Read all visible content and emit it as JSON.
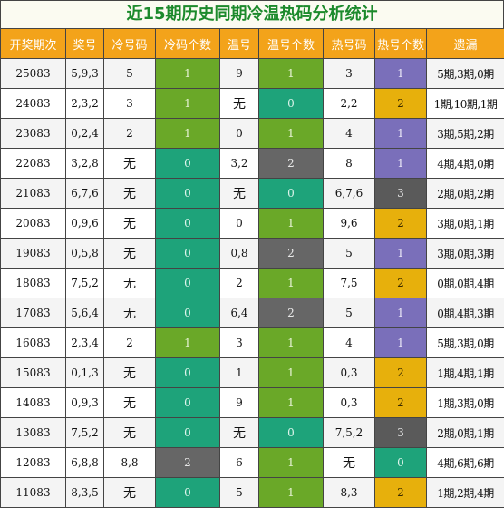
{
  "title": "近15期历史同期冷温热码分析统计",
  "headers": [
    "开奖期次",
    "奖号",
    "冷号码",
    "冷码个数",
    "温号",
    "温号个数",
    "热号码",
    "热号个数",
    "遗漏"
  ],
  "colors": {
    "header": "#f3a31a",
    "title_text": "#1c8a2c",
    "green": "#6aa828",
    "teal": "#1ea37a",
    "gray": "#666666",
    "purple": "#7a6fba",
    "yellow": "#e7b00c"
  },
  "rows": [
    {
      "period": "25083",
      "number": "5,9,3",
      "cold": "5",
      "cold_count": "1",
      "warm": "9",
      "warm_count": "1",
      "hot": "3",
      "hot_count": "1",
      "omission": "5期,3期,0期"
    },
    {
      "period": "24083",
      "number": "2,3,2",
      "cold": "3",
      "cold_count": "1",
      "warm": "无",
      "warm_count": "0",
      "hot": "2,2",
      "hot_count": "2",
      "omission": "1期,10期,1期"
    },
    {
      "period": "23083",
      "number": "0,2,4",
      "cold": "2",
      "cold_count": "1",
      "warm": "0",
      "warm_count": "1",
      "hot": "4",
      "hot_count": "1",
      "omission": "3期,5期,2期"
    },
    {
      "period": "22083",
      "number": "3,2,8",
      "cold": "无",
      "cold_count": "0",
      "warm": "3,2",
      "warm_count": "2",
      "hot": "8",
      "hot_count": "1",
      "omission": "4期,4期,0期"
    },
    {
      "period": "21083",
      "number": "6,7,6",
      "cold": "无",
      "cold_count": "0",
      "warm": "无",
      "warm_count": "0",
      "hot": "6,7,6",
      "hot_count": "3",
      "omission": "2期,0期,2期"
    },
    {
      "period": "20083",
      "number": "0,9,6",
      "cold": "无",
      "cold_count": "0",
      "warm": "0",
      "warm_count": "1",
      "hot": "9,6",
      "hot_count": "2",
      "omission": "3期,0期,1期"
    },
    {
      "period": "19083",
      "number": "0,5,8",
      "cold": "无",
      "cold_count": "0",
      "warm": "0,8",
      "warm_count": "2",
      "hot": "5",
      "hot_count": "1",
      "omission": "3期,0期,3期"
    },
    {
      "period": "18083",
      "number": "7,5,2",
      "cold": "无",
      "cold_count": "0",
      "warm": "2",
      "warm_count": "1",
      "hot": "7,5",
      "hot_count": "2",
      "omission": "0期,0期,4期"
    },
    {
      "period": "17083",
      "number": "5,6,4",
      "cold": "无",
      "cold_count": "0",
      "warm": "6,4",
      "warm_count": "2",
      "hot": "5",
      "hot_count": "1",
      "omission": "0期,4期,3期"
    },
    {
      "period": "16083",
      "number": "2,3,4",
      "cold": "2",
      "cold_count": "1",
      "warm": "3",
      "warm_count": "1",
      "hot": "4",
      "hot_count": "1",
      "omission": "5期,3期,0期"
    },
    {
      "period": "15083",
      "number": "0,1,3",
      "cold": "无",
      "cold_count": "0",
      "warm": "1",
      "warm_count": "1",
      "hot": "0,3",
      "hot_count": "2",
      "omission": "1期,4期,1期"
    },
    {
      "period": "14083",
      "number": "0,9,3",
      "cold": "无",
      "cold_count": "0",
      "warm": "9",
      "warm_count": "1",
      "hot": "0,3",
      "hot_count": "2",
      "omission": "1期,3期,0期"
    },
    {
      "period": "13083",
      "number": "7,5,2",
      "cold": "无",
      "cold_count": "0",
      "warm": "无",
      "warm_count": "0",
      "hot": "7,5,2",
      "hot_count": "3",
      "omission": "2期,0期,1期"
    },
    {
      "period": "12083",
      "number": "6,8,8",
      "cold": "8,8",
      "cold_count": "2",
      "warm": "6",
      "warm_count": "1",
      "hot": "无",
      "hot_count": "0",
      "omission": "4期,6期,6期"
    },
    {
      "period": "11083",
      "number": "8,3,5",
      "cold": "无",
      "cold_count": "0",
      "warm": "5",
      "warm_count": "1",
      "hot": "8,3",
      "hot_count": "2",
      "omission": "1期,2期,4期"
    }
  ]
}
